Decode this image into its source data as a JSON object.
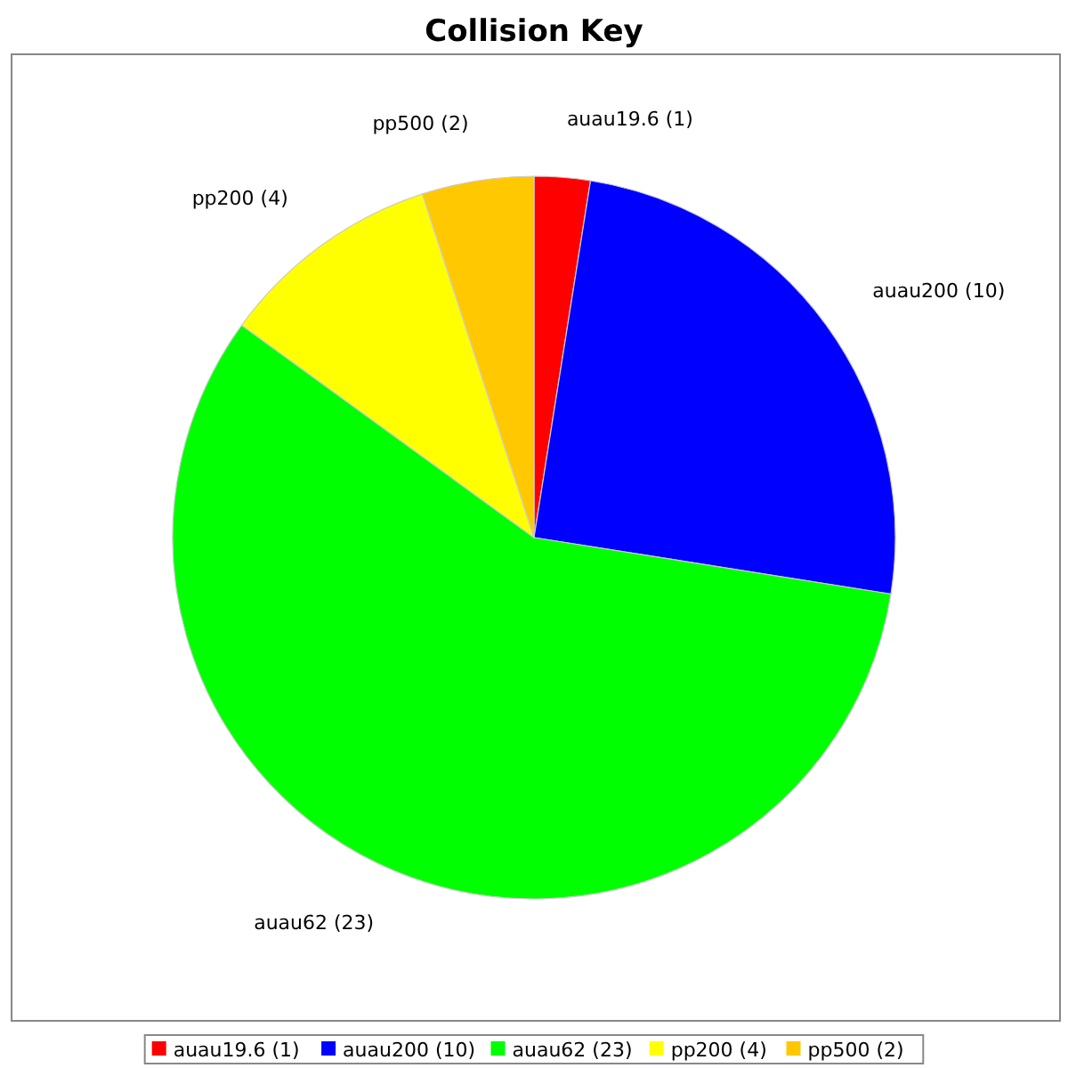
{
  "chart_data": {
    "type": "pie",
    "title": "Collision Key",
    "categories": [
      "auau19.6 (1)",
      "auau200 (10)",
      "auau62 (23)",
      "pp200 (4)",
      "pp500 (2)"
    ],
    "values": [
      1,
      10,
      23,
      4,
      2
    ],
    "colors": [
      "#ff0000",
      "#0000ff",
      "#00ff00",
      "#ffff00",
      "#ffc800"
    ],
    "legend": "bottom"
  }
}
